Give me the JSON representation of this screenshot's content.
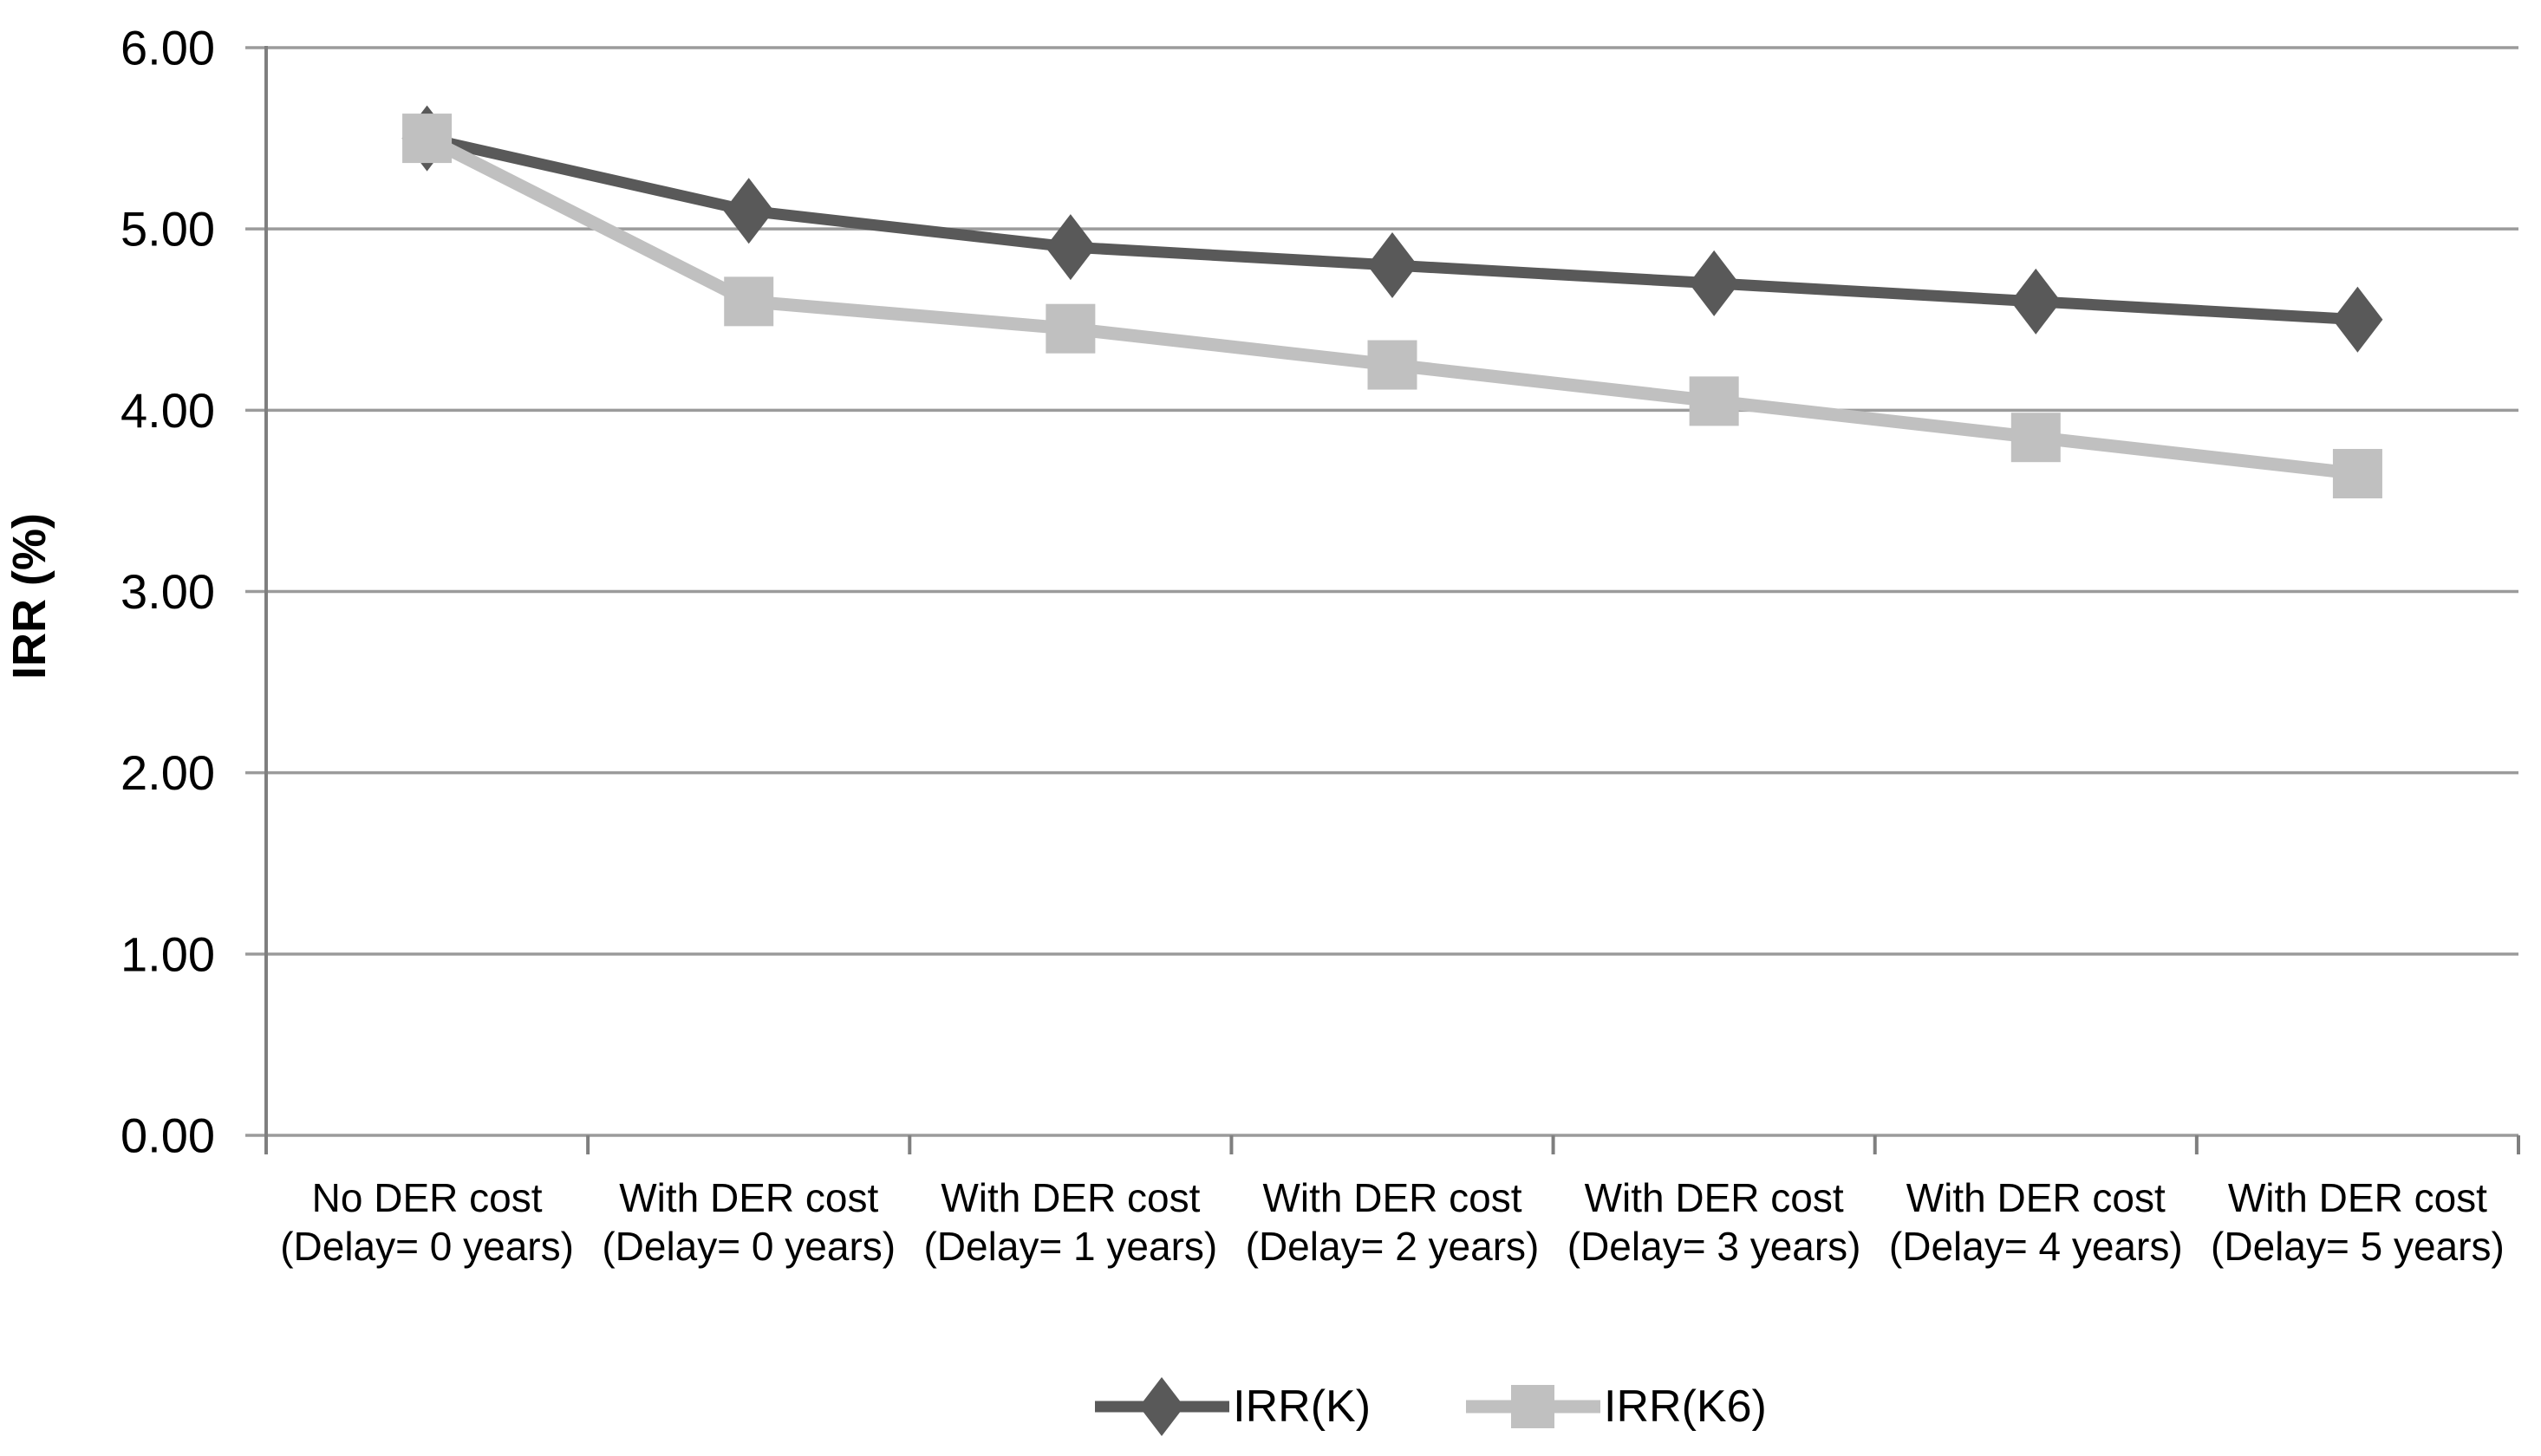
{
  "chart_data": {
    "type": "line",
    "title": "",
    "xlabel": "",
    "ylabel": "IRR (%)",
    "ylim": [
      0,
      6
    ],
    "ytick_step": 1,
    "ytick_decimals": 2,
    "grid": true,
    "legend_position": "bottom-center",
    "categories": [
      "No DER cost\n(Delay= 0 years)",
      "With DER cost\n(Delay= 0 years)",
      "With DER cost\n(Delay= 1 years)",
      "With DER cost\n(Delay= 2 years)",
      "With DER cost\n(Delay= 3 years)",
      "With DER cost\n(Delay= 4 years)",
      "With DER cost\n(Delay= 5 years)"
    ],
    "series": [
      {
        "name": "IRR(K)",
        "marker": "diamond",
        "color": "#595959",
        "values": [
          5.5,
          5.1,
          4.9,
          4.8,
          4.7,
          4.6,
          4.5
        ]
      },
      {
        "name": "IRR(K6)",
        "marker": "square",
        "color": "#c0c0c0",
        "values": [
          5.5,
          4.6,
          4.45,
          4.25,
          4.05,
          3.85,
          3.65
        ]
      }
    ],
    "colors": {
      "gridline": "#9b9b9b",
      "axis": "#7f7f7f",
      "text": "#000000"
    }
  }
}
